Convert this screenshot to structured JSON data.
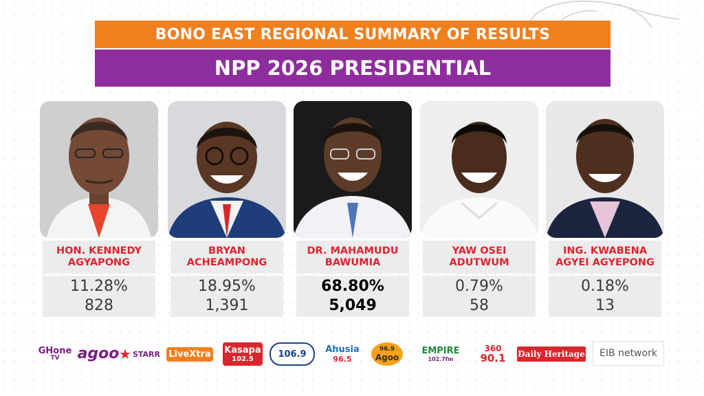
{
  "banner": {
    "region_title": "BONO EAST REGIONAL SUMMARY OF RESULTS",
    "election_title": "NPP 2026 PRESIDENTIAL"
  },
  "colors": {
    "orange": "#f07f1e",
    "purple": "#8e2d9d",
    "red": "#e0232e",
    "panel": "#ececec"
  },
  "candidates": [
    {
      "name": "HON. KENNEDY\nAGYAPONG",
      "percent": "11.28%",
      "votes": "828"
    },
    {
      "name": "BRYAN\nACHEAMPONG",
      "percent": "18.95%",
      "votes": "1,391"
    },
    {
      "name": "DR. MAHAMUDU\nBAWUMIA",
      "percent": "68.80%",
      "votes": "5,049"
    },
    {
      "name": "YAW OSEI\nADUTWUM",
      "percent": "0.79%",
      "votes": "58"
    },
    {
      "name": "ING. KWABENA\nAGYEI AGYEPONG",
      "percent": "0.18%",
      "votes": "13"
    }
  ],
  "sponsors": {
    "ghone": "GHone",
    "ghone_sub": "TV",
    "agoo": "agoo",
    "starr": "STARR",
    "livextra": "LiveXtra",
    "kasapa": "Kasapa",
    "kasapa_freq": "102.5",
    "freq_1069": "106.9",
    "ahusia": "Ahusia",
    "ahusia_freq": "96.5",
    "agoo_fm": "96.9",
    "agoo_fm_name": "Agoo",
    "empire": "EMPIRE",
    "empire_freq": "102.7fm",
    "radio360": "360",
    "radio360_freq": "90.1",
    "daily_heritage": "Daily Heritage",
    "eib": "EIB network"
  }
}
